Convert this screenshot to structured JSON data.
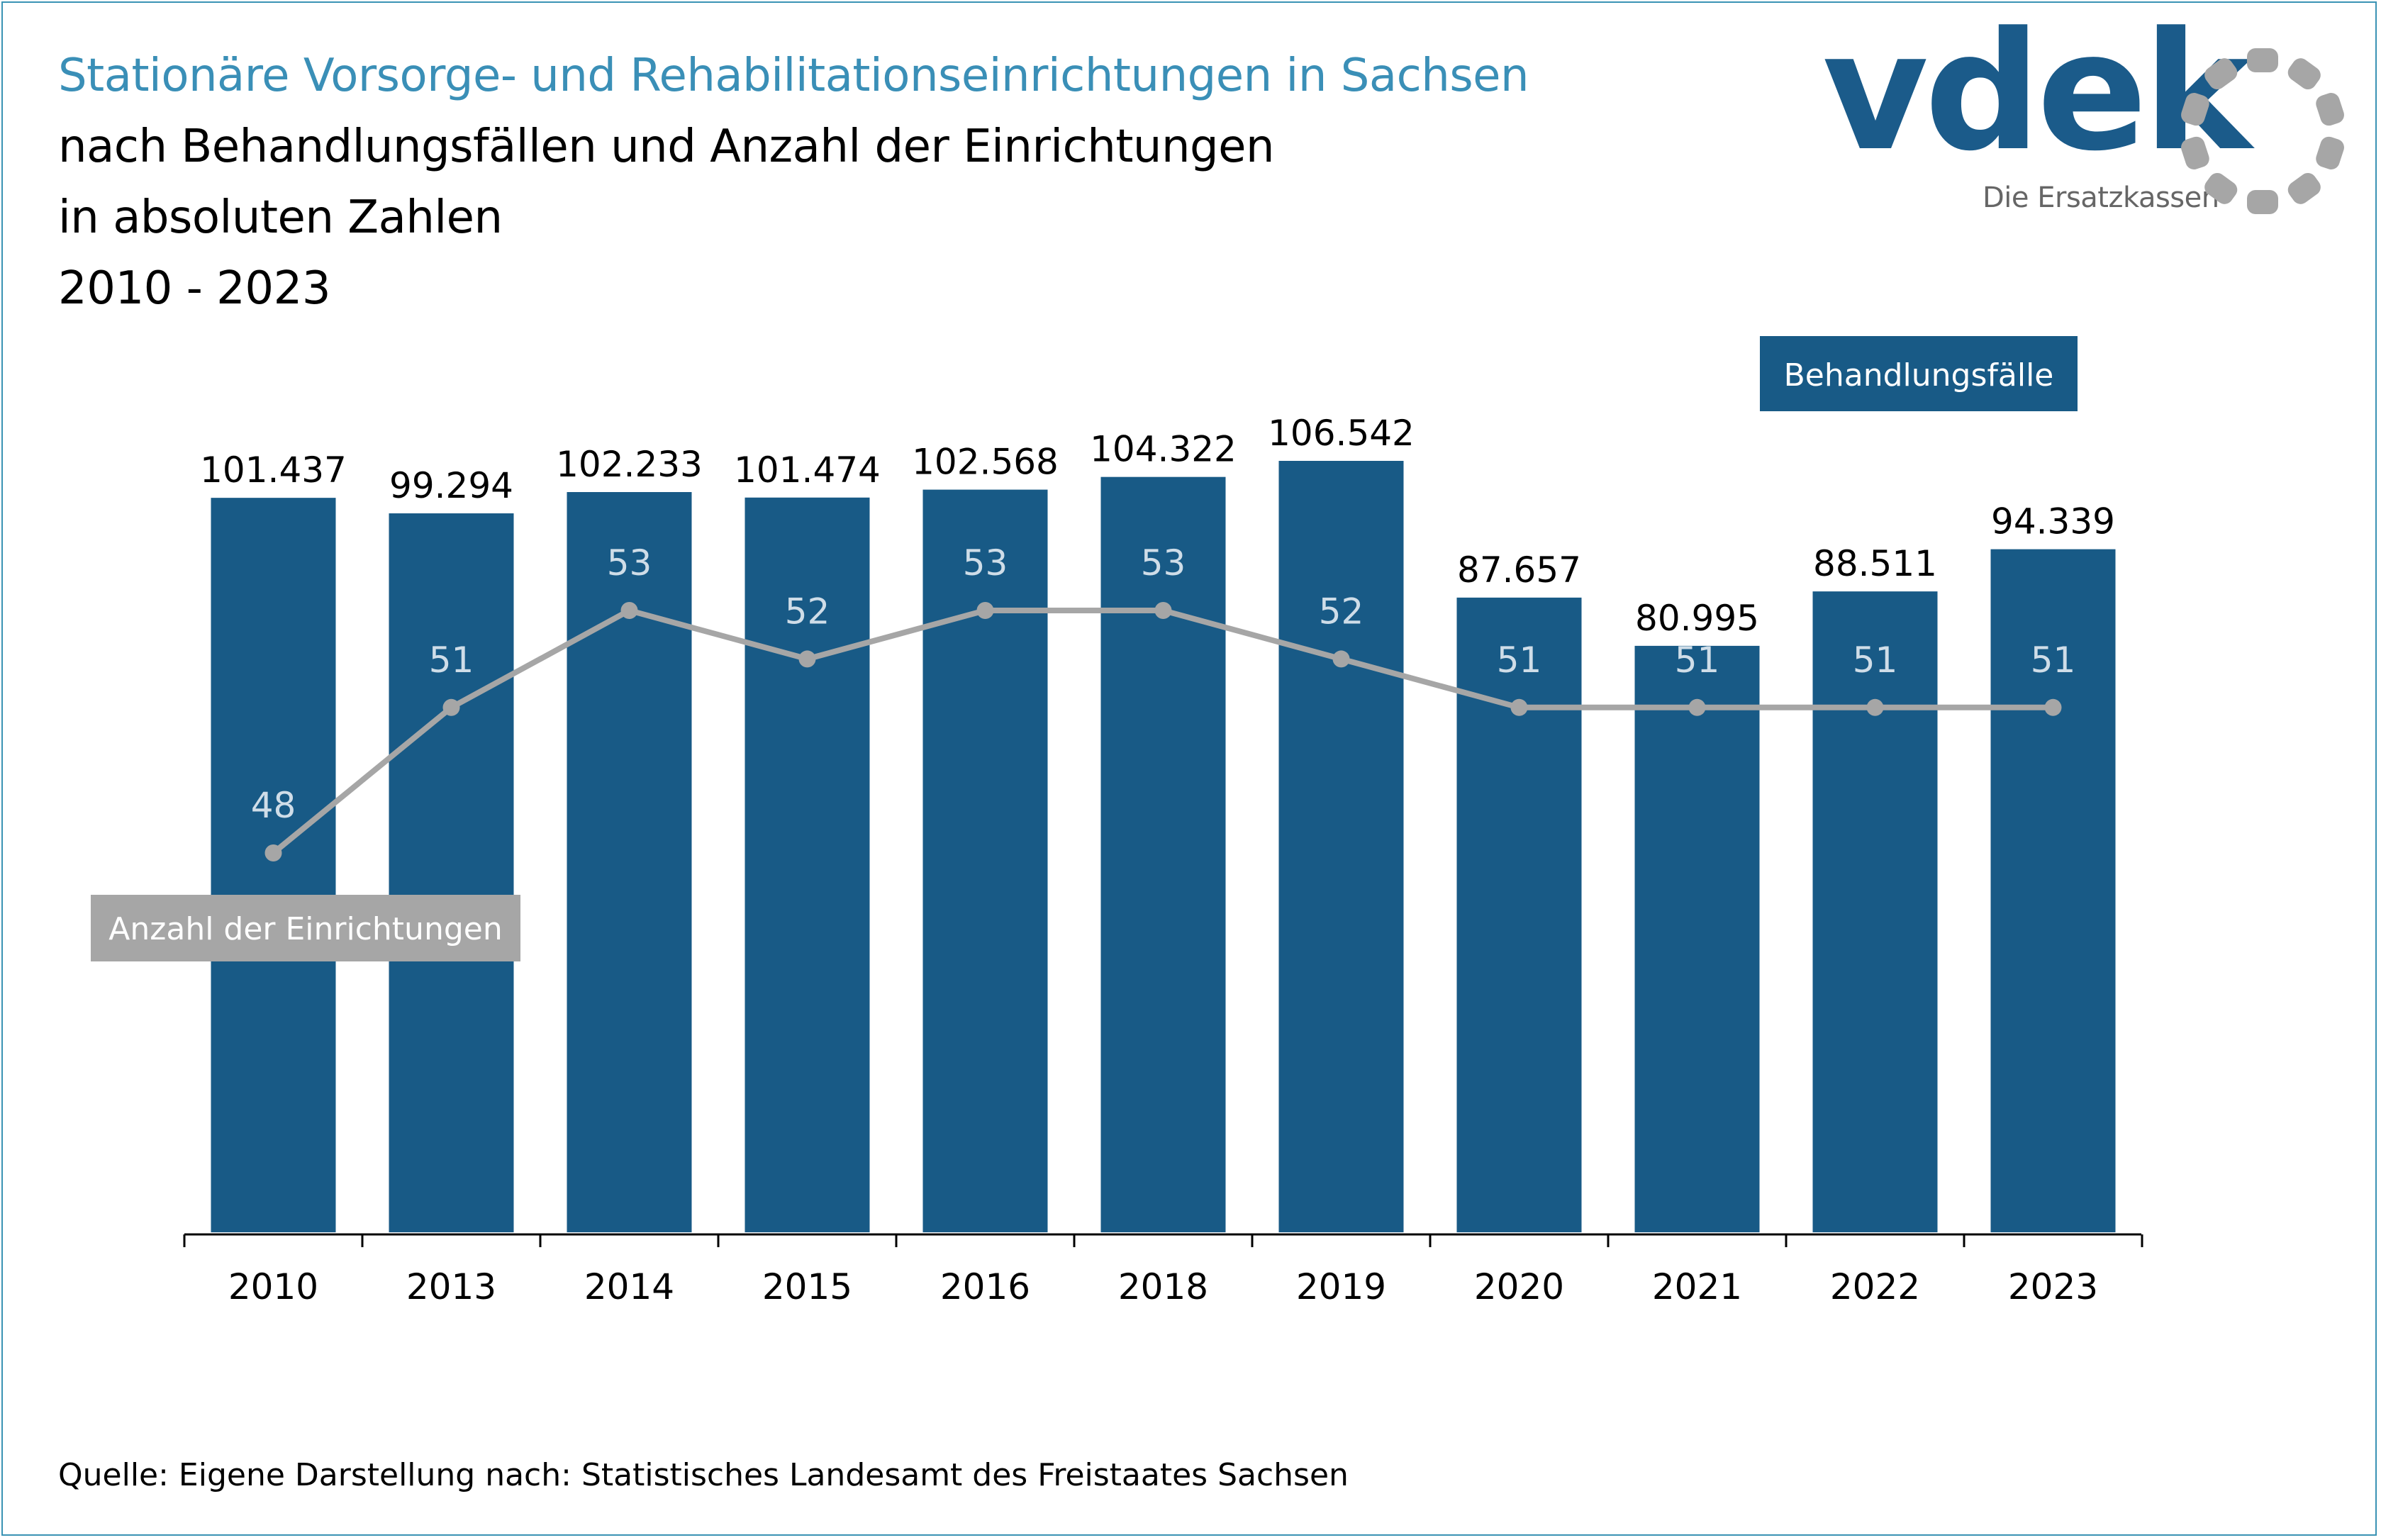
{
  "title": {
    "line1": "Stationäre Vorsorge- und Rehabilitationseinrichtungen in Sachsen",
    "line2": "nach Behandlungsfällen und Anzahl der Einrichtungen",
    "line3": "in absoluten Zahlen",
    "line4": "2010 - 2023"
  },
  "logo": {
    "word": "vdek",
    "subtitle": "Die Ersatzkassen"
  },
  "source": "Quelle: Eigene Darstellung nach: Statistisches Landesamt des Freistaates Sachsen",
  "colors": {
    "bar": "#185a86",
    "line": "#a6a6a6",
    "title_accent": "#3a8fb7",
    "frame": "#3a93b4",
    "logo_ring": "#a6a6a6"
  },
  "chart_data": {
    "type": "bar",
    "categories": [
      "2010",
      "2013",
      "2014",
      "2015",
      "2016",
      "2018",
      "2019",
      "2020",
      "2021",
      "2022",
      "2023"
    ],
    "series": [
      {
        "name": "Behandlungsfälle",
        "type": "bar",
        "values": [
          101437,
          99294,
          102233,
          101474,
          102568,
          104322,
          106542,
          87657,
          80995,
          88511,
          94339
        ],
        "labels": [
          "101.437",
          "99.294",
          "102.233",
          "101.474",
          "102.568",
          "104.322",
          "106.542",
          "87.657",
          "80.995",
          "88.511",
          "94.339"
        ],
        "ylim": [
          0,
          110000
        ]
      },
      {
        "name": "Anzahl der Einrichtungen",
        "type": "line",
        "values": [
          48,
          51,
          53,
          52,
          53,
          53,
          52,
          51,
          51,
          51,
          51
        ],
        "labels": [
          "48",
          "51",
          "53",
          "52",
          "53",
          "53",
          "52",
          "51",
          "51",
          "51",
          "51"
        ]
      }
    ],
    "legend": {
      "bar_series": "Behandlungsfälle",
      "line_series": "Anzahl der Einrichtungen"
    },
    "grid": false
  }
}
